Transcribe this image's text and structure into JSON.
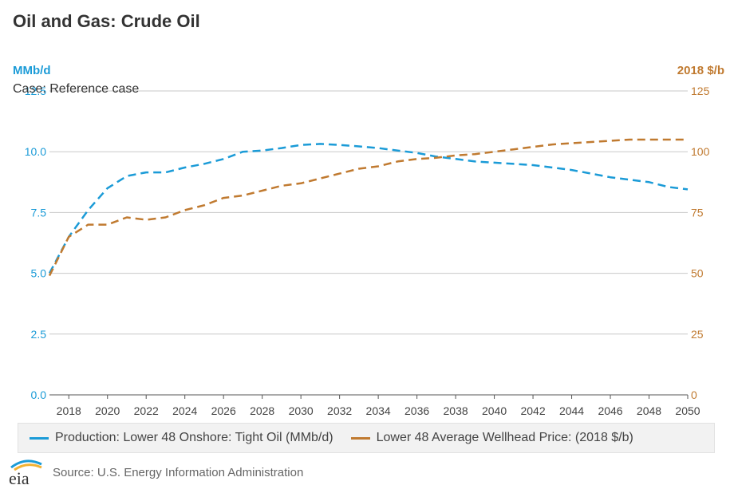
{
  "title": "Oil and Gas: Crude Oil",
  "left_unit": "MMb/d",
  "right_unit": "2018 $/b",
  "case_label": "Case: Reference case",
  "source": "Source: U.S. Energy Information Administration",
  "logo_text": "eia",
  "colors": {
    "production": "#1b9bd7",
    "price": "#c07a30",
    "grid": "#c8c8c8",
    "axis": "#555555"
  },
  "chart_data": {
    "type": "line",
    "x_ticks": [
      2018,
      2020,
      2022,
      2024,
      2026,
      2028,
      2030,
      2032,
      2034,
      2036,
      2038,
      2040,
      2042,
      2044,
      2046,
      2048,
      2050
    ],
    "xlim": [
      2017,
      2050
    ],
    "y_left": {
      "label": "MMb/d",
      "lim": [
        0,
        12.5
      ],
      "ticks": [
        "0.0",
        "2.5",
        "5.0",
        "7.5",
        "10.0",
        "12.5"
      ]
    },
    "y_right": {
      "label": "2018 $/b",
      "lim": [
        0,
        125
      ],
      "ticks": [
        "0",
        "25",
        "50",
        "75",
        "100",
        "125"
      ]
    },
    "grid": true,
    "legend_position": "bottom",
    "series": [
      {
        "name": "Production: Lower 48 Onshore: Tight Oil (MMb/d)",
        "axis": "left",
        "style": "dashed",
        "x": [
          2017,
          2018,
          2019,
          2020,
          2021,
          2022,
          2023,
          2024,
          2025,
          2026,
          2027,
          2028,
          2029,
          2030,
          2031,
          2032,
          2033,
          2034,
          2035,
          2036,
          2037,
          2038,
          2039,
          2040,
          2041,
          2042,
          2043,
          2044,
          2045,
          2046,
          2047,
          2048,
          2049,
          2050
        ],
        "values": [
          5.0,
          6.5,
          7.6,
          8.5,
          9.0,
          9.15,
          9.15,
          9.35,
          9.5,
          9.7,
          10.0,
          10.05,
          10.15,
          10.28,
          10.32,
          10.28,
          10.22,
          10.15,
          10.05,
          9.95,
          9.8,
          9.7,
          9.6,
          9.55,
          9.5,
          9.45,
          9.35,
          9.25,
          9.1,
          8.95,
          8.85,
          8.75,
          8.55,
          8.45
        ]
      },
      {
        "name": "Lower 48 Average Wellhead Price: (2018 $/b)",
        "axis": "right",
        "style": "dashed",
        "x": [
          2017,
          2018,
          2019,
          2020,
          2021,
          2022,
          2023,
          2024,
          2025,
          2026,
          2027,
          2028,
          2029,
          2030,
          2031,
          2032,
          2033,
          2034,
          2035,
          2036,
          2037,
          2038,
          2039,
          2040,
          2041,
          2042,
          2043,
          2044,
          2045,
          2046,
          2047,
          2048,
          2049,
          2050
        ],
        "values": [
          49,
          65,
          70,
          70,
          73,
          72,
          73,
          76,
          78,
          81,
          82,
          84,
          86,
          87,
          89,
          91,
          93,
          94,
          96,
          97,
          97.5,
          98.5,
          99,
          100,
          101,
          102,
          103,
          103.5,
          104,
          104.5,
          105,
          105,
          105,
          105
        ]
      }
    ]
  }
}
